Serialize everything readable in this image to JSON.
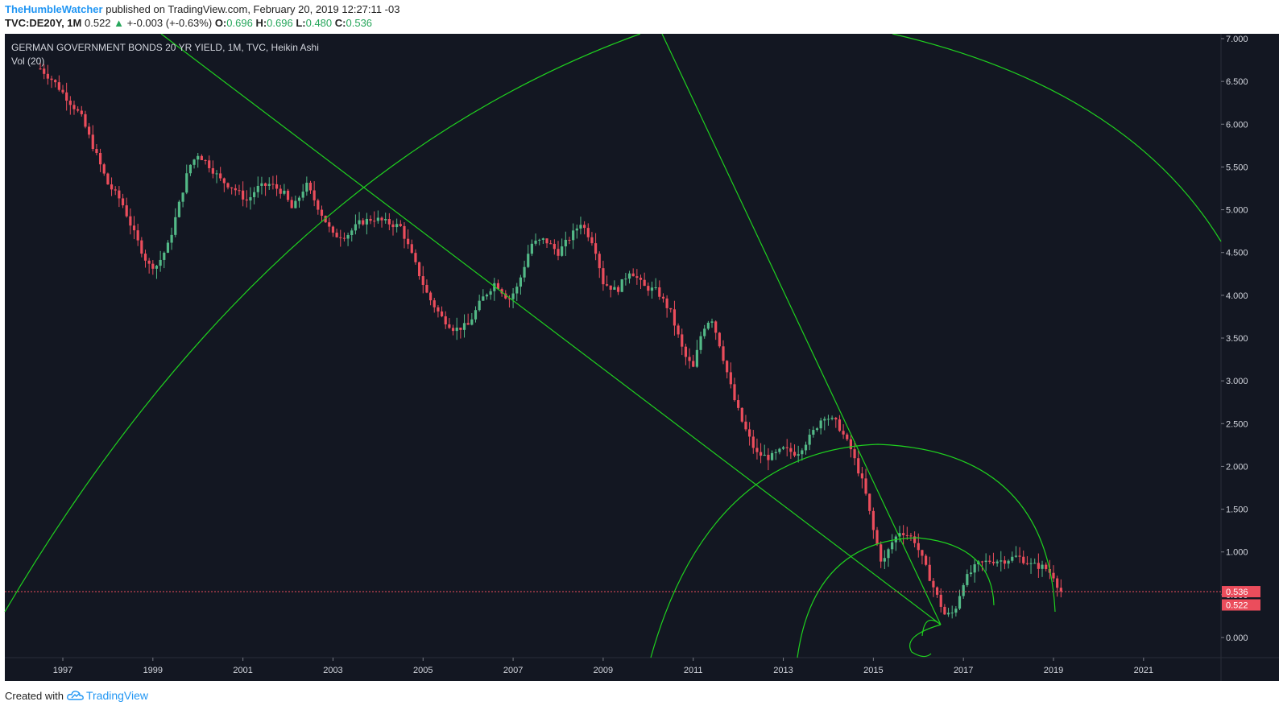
{
  "header": {
    "author": "TheHumbleWatcher",
    "published": "published on TradingView.com, February 20, 2019 12:27:11 -03",
    "symbol": "TVC:DE20Y, 1M",
    "last": "0.522",
    "change": "+-0.003 (+-0.63%)",
    "o_label": "O:",
    "o": "0.696",
    "h_label": "H:",
    "h": "0.696",
    "l_label": "L:",
    "l": "0.480",
    "c_label": "C:",
    "c": "0.536"
  },
  "legend": {
    "title": "GERMAN GOVERNMENT BONDS 20 YR YIELD, 1M, TVC, Heikin Ashi",
    "indicator": "Vol (20)"
  },
  "footer": {
    "created": "Created with",
    "brand": "TradingView"
  },
  "colors": {
    "background": "#131722",
    "up": "#53b987",
    "down": "#eb4d5c",
    "drawing": "#1fd11f",
    "price_line": "#eb4d5c"
  },
  "chart_data": {
    "type": "candlestick",
    "title": "GERMAN GOVERNMENT BONDS 20 YR YIELD, 1M, TVC, Heikin Ashi",
    "y_axis": {
      "min": 0,
      "max": 7,
      "ticks": [
        "7.000",
        "6.500",
        "6.000",
        "5.500",
        "5.000",
        "4.500",
        "4.000",
        "3.500",
        "3.000",
        "2.500",
        "2.000",
        "1.500",
        "1.000",
        "0.500",
        "0.000"
      ]
    },
    "x_axis": {
      "ticks": [
        "1997",
        "1999",
        "2001",
        "2003",
        "2005",
        "2007",
        "2009",
        "2011",
        "2013",
        "2015",
        "2017",
        "2019",
        "2021"
      ]
    },
    "price_labels": [
      "0.536",
      "0.522"
    ],
    "price_values": [
      0.536,
      0.522
    ],
    "yield_path": [
      [
        1996.5,
        6.65
      ],
      [
        1996.8,
        6.5
      ],
      [
        1997.1,
        6.3
      ],
      [
        1997.4,
        6.1
      ],
      [
        1997.7,
        5.7
      ],
      [
        1998.0,
        5.3
      ],
      [
        1998.3,
        5.1
      ],
      [
        1998.6,
        4.7
      ],
      [
        1998.9,
        4.35
      ],
      [
        1999.1,
        4.35
      ],
      [
        1999.35,
        4.6
      ],
      [
        1999.6,
        5.1
      ],
      [
        1999.8,
        5.5
      ],
      [
        2000.0,
        5.65
      ],
      [
        2000.2,
        5.55
      ],
      [
        2000.5,
        5.35
      ],
      [
        2000.8,
        5.25
      ],
      [
        2001.1,
        5.1
      ],
      [
        2001.3,
        5.25
      ],
      [
        2001.6,
        5.3
      ],
      [
        2001.9,
        5.2
      ],
      [
        2002.1,
        5.0
      ],
      [
        2002.4,
        5.3
      ],
      [
        2002.7,
        5.0
      ],
      [
        2003.0,
        4.7
      ],
      [
        2003.3,
        4.7
      ],
      [
        2003.6,
        4.85
      ],
      [
        2003.9,
        4.9
      ],
      [
        2004.2,
        4.85
      ],
      [
        2004.5,
        4.8
      ],
      [
        2004.8,
        4.4
      ],
      [
        2005.1,
        4.0
      ],
      [
        2005.4,
        3.75
      ],
      [
        2005.7,
        3.6
      ],
      [
        2006.0,
        3.65
      ],
      [
        2006.3,
        3.95
      ],
      [
        2006.6,
        4.15
      ],
      [
        2006.9,
        3.95
      ],
      [
        2007.1,
        4.1
      ],
      [
        2007.4,
        4.6
      ],
      [
        2007.7,
        4.65
      ],
      [
        2008.0,
        4.5
      ],
      [
        2008.3,
        4.7
      ],
      [
        2008.5,
        4.85
      ],
      [
        2008.8,
        4.6
      ],
      [
        2009.0,
        4.15
      ],
      [
        2009.3,
        4.05
      ],
      [
        2009.6,
        4.3
      ],
      [
        2009.9,
        4.1
      ],
      [
        2010.2,
        4.05
      ],
      [
        2010.5,
        3.8
      ],
      [
        2010.8,
        3.3
      ],
      [
        2011.0,
        3.15
      ],
      [
        2011.2,
        3.6
      ],
      [
        2011.4,
        3.75
      ],
      [
        2011.6,
        3.4
      ],
      [
        2011.9,
        2.8
      ],
      [
        2012.1,
        2.5
      ],
      [
        2012.4,
        2.15
      ],
      [
        2012.7,
        2.1
      ],
      [
        2013.0,
        2.2
      ],
      [
        2013.3,
        2.15
      ],
      [
        2013.6,
        2.35
      ],
      [
        2013.9,
        2.6
      ],
      [
        2014.2,
        2.5
      ],
      [
        2014.5,
        2.2
      ],
      [
        2014.8,
        1.75
      ],
      [
        2015.0,
        1.25
      ],
      [
        2015.2,
        0.85
      ],
      [
        2015.4,
        1.1
      ],
      [
        2015.6,
        1.25
      ],
      [
        2015.9,
        1.15
      ],
      [
        2016.1,
        0.9
      ],
      [
        2016.4,
        0.5
      ],
      [
        2016.6,
        0.25
      ],
      [
        2016.8,
        0.3
      ],
      [
        2017.0,
        0.65
      ],
      [
        2017.3,
        0.85
      ],
      [
        2017.6,
        0.9
      ],
      [
        2017.9,
        0.9
      ],
      [
        2018.2,
        0.95
      ],
      [
        2018.5,
        0.85
      ],
      [
        2018.8,
        0.82
      ],
      [
        2019.0,
        0.72
      ],
      [
        2019.15,
        0.54
      ]
    ]
  }
}
